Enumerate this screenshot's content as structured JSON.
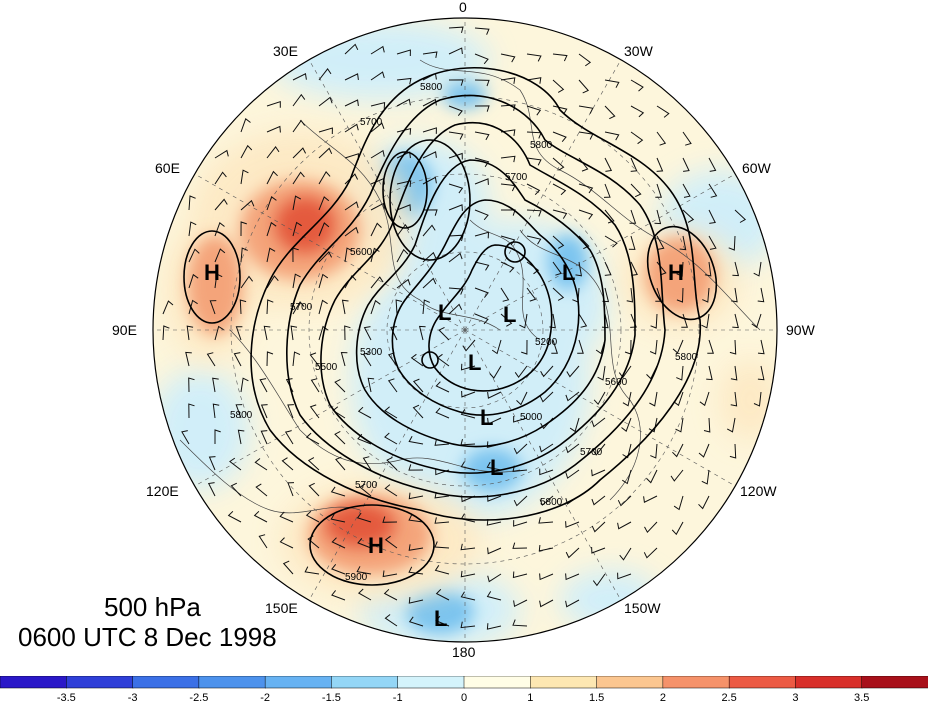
{
  "map": {
    "title_level": "500 hPa",
    "title_time": "0600 UTC 8 Dec 1998",
    "projection": "north polar stereographic",
    "longitude_labels": [
      "0",
      "30W",
      "60W",
      "90W",
      "120W",
      "150W",
      "180",
      "150E",
      "120E",
      "90E",
      "60E",
      "30E"
    ],
    "contour_labels": [
      "5800",
      "5700",
      "5600",
      "5500",
      "5300",
      "5200",
      "5000",
      "5900"
    ],
    "pressure_centers": [
      {
        "type": "H",
        "label": "H"
      },
      {
        "type": "H",
        "label": "H"
      },
      {
        "type": "H",
        "label": "H"
      },
      {
        "type": "L",
        "label": "L"
      },
      {
        "type": "L",
        "label": "L"
      },
      {
        "type": "L",
        "label": "L"
      },
      {
        "type": "L",
        "label": "L"
      },
      {
        "type": "L",
        "label": "L"
      },
      {
        "type": "L",
        "label": "L"
      },
      {
        "type": "L",
        "label": "L"
      }
    ],
    "colors": {
      "positive_strong": "#d63a2a",
      "positive_mid": "#f08a5a",
      "positive_light": "#fde8c2",
      "negative_light": "#cfeefa",
      "negative_mid": "#7cc4ef",
      "negative_strong": "#3f8fe0"
    }
  },
  "colorbar": {
    "tick_labels": [
      "-3.5",
      "-3",
      "-2.5",
      "-2",
      "-1.5",
      "-1",
      "0",
      "1",
      "1.5",
      "2",
      "2.5",
      "3",
      "3.5"
    ],
    "segment_colors": [
      "#2a18c8",
      "#2f3fd8",
      "#3b70e6",
      "#4d92ec",
      "#67b2f2",
      "#94d6f6",
      "#d4f3fb",
      "#fffde6",
      "#fde7b2",
      "#fbc690",
      "#f5926a",
      "#ec5a44",
      "#d82f2a",
      "#a8101a"
    ]
  }
}
